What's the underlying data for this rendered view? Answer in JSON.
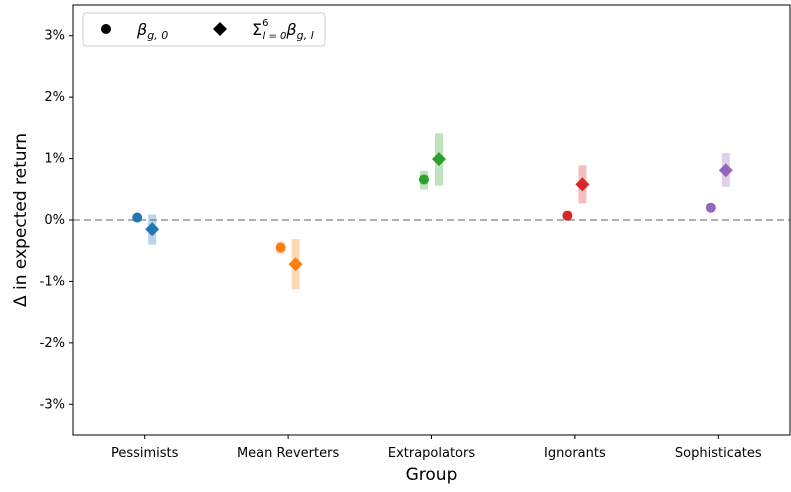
{
  "chart_data": {
    "type": "scatter",
    "xlabel": "Group",
    "ylabel": "Δ in expected return",
    "categories": [
      "Pessimists",
      "Mean Reverters",
      "Extrapolators",
      "Ignorants",
      "Sophisticates"
    ],
    "ylim": [
      -3.5,
      3.5
    ],
    "yticks": [
      -3,
      -2,
      -1,
      0,
      1,
      2,
      3
    ],
    "ytick_labels": [
      "-3%",
      "-2%",
      "-1%",
      "0%",
      "1%",
      "2%",
      "3%"
    ],
    "reference_line": {
      "y": 0,
      "style": "dashed",
      "color": "#b0b0b0"
    },
    "grid": false,
    "legend": {
      "placement": "top-left"
    },
    "colors": [
      "#1f77b4",
      "#ff7f0e",
      "#2ca02c",
      "#d62728",
      "#9467bd"
    ],
    "series": [
      {
        "name": "β_{g,0}",
        "marker": "circle",
        "values": [
          0.04,
          -0.45,
          0.66,
          0.07,
          0.2
        ],
        "ci_low": [
          0.02,
          -0.55,
          0.5,
          0.01,
          0.15
        ],
        "ci_high": [
          0.06,
          -0.35,
          0.8,
          0.15,
          0.26
        ]
      },
      {
        "name": "Σ_{l=0}^{6} β_{g,l}",
        "marker": "diamond",
        "values": [
          -0.15,
          -0.72,
          0.99,
          0.58,
          0.81
        ],
        "ci_low": [
          -0.4,
          -1.13,
          0.56,
          0.27,
          0.54
        ],
        "ci_high": [
          0.09,
          -0.31,
          1.41,
          0.89,
          1.09
        ]
      }
    ]
  },
  "legend_text": {
    "s0": {
      "main": "β",
      "sub": "g, 0"
    },
    "s1": {
      "main": "Σ",
      "sup": "6",
      "sub": "l = 0",
      "rest": "β",
      "rest_sub": "g, l"
    }
  }
}
